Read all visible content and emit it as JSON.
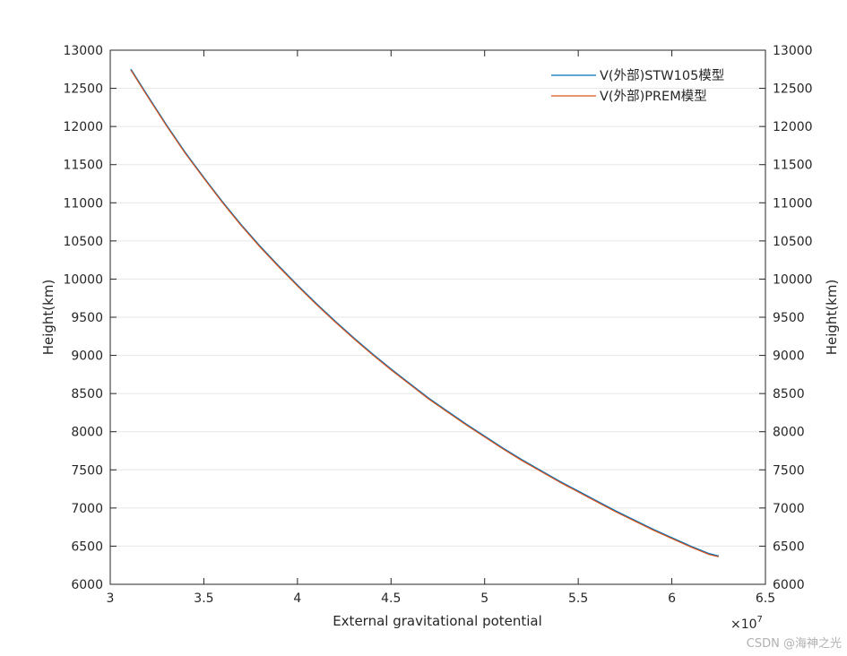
{
  "chart_data": {
    "type": "line",
    "xlabel": "External gravitational potential",
    "ylabel": "Height(km)",
    "ylabel_right": "Height(km)",
    "x_exponent_label": "×10",
    "x_exponent_power": "7",
    "xlim": [
      3,
      6.5
    ],
    "ylim": [
      6000,
      13000
    ],
    "x_ticks": [
      "3",
      "3.5",
      "4",
      "4.5",
      "5",
      "5.5",
      "6",
      "6.5"
    ],
    "y_ticks": [
      "6000",
      "6500",
      "7000",
      "7500",
      "8000",
      "8500",
      "9000",
      "9500",
      "10000",
      "10500",
      "11000",
      "11500",
      "12000",
      "12500",
      "13000"
    ],
    "grid": "horizontal",
    "legend_position": "top-right",
    "x_unit_multiplier": 10000000,
    "series": [
      {
        "name": "V(外部)STW105模型",
        "color": "#0072BD",
        "x": [
          31100000,
          32000000,
          33000000,
          34000000,
          35000000,
          36000000,
          37000000,
          38000000,
          39000000,
          40000000,
          41000000,
          42000000,
          43000000,
          44000000,
          45000000,
          46000000,
          47000000,
          48000000,
          49000000,
          50000000,
          51000000,
          52000000,
          53000000,
          54000000,
          55000000,
          56000000,
          57000000,
          58000000,
          59000000,
          60000000,
          61000000,
          62000000,
          62500000
        ],
        "y": [
          12750,
          12400,
          12020,
          11660,
          11330,
          11010,
          10710,
          10430,
          10170,
          9920,
          9680,
          9450,
          9230,
          9020,
          8820,
          8630,
          8440,
          8270,
          8100,
          7940,
          7780,
          7630,
          7490,
          7350,
          7220,
          7090,
          6960,
          6840,
          6720,
          6610,
          6500,
          6400,
          6370
        ]
      },
      {
        "name": "V(外部)PREM模型",
        "color": "#D95319",
        "x": [
          31100000,
          32000000,
          33000000,
          34000000,
          35000000,
          36000000,
          37000000,
          38000000,
          39000000,
          40000000,
          41000000,
          42000000,
          43000000,
          44000000,
          45000000,
          46000000,
          47000000,
          48000000,
          49000000,
          50000000,
          51000000,
          52000000,
          53000000,
          54000000,
          55000000,
          56000000,
          57000000,
          58000000,
          59000000,
          60000000,
          61000000,
          62000000,
          62500000
        ],
        "y": [
          12740,
          12390,
          12010,
          11650,
          11320,
          11000,
          10700,
          10420,
          10160,
          9910,
          9670,
          9440,
          9220,
          9010,
          8810,
          8620,
          8430,
          8260,
          8090,
          7930,
          7770,
          7620,
          7480,
          7340,
          7210,
          7080,
          6950,
          6830,
          6710,
          6600,
          6490,
          6390,
          6360
        ]
      }
    ]
  },
  "watermark": "CSDN @海神之光"
}
